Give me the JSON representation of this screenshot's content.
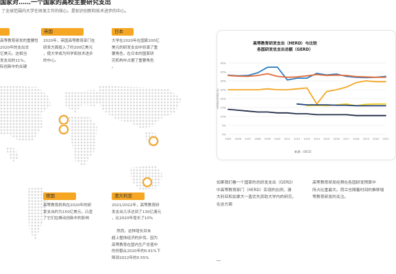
{
  "header": {
    "title": "国家对……一个国家的高校主要研究支出",
    "subtitle": "了全球范围内大学在研发工作的核心。是知识创新和技术进步的中心。"
  },
  "cards": [
    {
      "label": "",
      "text": "高等教育研发的重要性\n2020年的支出总\n亿美元。这相当\n发支出的11%，\n际创新中的关键"
    },
    {
      "label": "英国",
      "text": "2020年，英国高等教育部门在\n研发方面投入了约200亿美元\n，使大学成为科学和技术进步\n的中心。"
    },
    {
      "label": "日本",
      "text": "大学在2020年在国家200亿\n美元的研发支出中扮演了重\n要角色，在日本的国家研\n究机构中占据了重要角色\n。"
    },
    {
      "label": "德国",
      "text": "高等教育机构在2020年的研\n发支出约为150亿美元，凸显\n了它们在推动创新中的影响"
    },
    {
      "label": "澳大利亚",
      "text": "2021/2022年，高等教育研\n发支出几乎达到了130亿澳元\n，比2020年增长了10%\n\n    然而，这种增长并未\n超上整体经济的步伐。因为\n高等教育在国内生产总值中\n的份额从2020年的0.61%下\n降到2022年的0.55%"
    }
  ],
  "chart_data": {
    "type": "line",
    "title": "高等教育研发支出（HERD）与比较\n各国研发总支出总额（GERD）",
    "x": [
      "2005",
      "2006",
      "2007",
      "2008",
      "2009",
      "2010",
      "2011",
      "2012",
      "2013",
      "2014",
      "2015",
      "2016",
      "2017",
      "2018",
      "2019",
      "2020",
      "2021"
    ],
    "ylabel": "HERD/GERD(%)",
    "yticks": [
      "40%",
      "35%",
      "30%",
      "25%",
      "20%",
      "15%",
      "10%",
      "5%",
      "0%"
    ],
    "ylim": [
      0,
      40
    ],
    "series": [
      {
        "color": "#2e7bbf",
        "values": [
          33.2,
          32.8,
          33.0,
          34.5,
          37.6,
          37.7,
          30.5,
          31.5,
          31.5,
          34.2,
          33.3,
          33.8,
          32.5,
          32.0,
          31.8,
          32.0,
          32.5
        ]
      },
      {
        "color": "#e06b3a",
        "values": [
          33.0,
          32.6,
          32.5,
          33.0,
          34.0,
          32.5,
          32.0,
          32.2,
          32.8,
          33.5,
          33.0,
          33.2,
          33.0,
          32.4,
          32.2,
          32.0,
          32.0
        ]
      },
      {
        "color": "#f5a623",
        "values": [
          25.0,
          25.0,
          25.0,
          25.0,
          25.5,
          25.0,
          25.0,
          25.5,
          26.0,
          17.0,
          24.0,
          25.0,
          26.5,
          29.0,
          30.0,
          29.5,
          29.5
        ]
      },
      {
        "color": "#f5d020",
        "values": [
          null,
          null,
          null,
          null,
          null,
          null,
          null,
          null,
          16.0,
          16.2,
          16.0,
          16.5,
          17.0,
          16.0,
          16.8,
          17.0,
          17.0
        ]
      },
      {
        "color": "#1f3f7a",
        "values": [
          null,
          null,
          null,
          null,
          null,
          null,
          null,
          17.0,
          16.5,
          16.5,
          16.5,
          16.3,
          16.3,
          16.0,
          16.0,
          16.0,
          16.0
        ]
      },
      {
        "color": "#222c4a",
        "values": [
          14.0,
          13.5,
          13.0,
          12.5,
          12.5,
          12.0,
          12.0,
          11.5,
          11.5,
          11.0,
          11.0,
          11.0,
          11.0,
          10.5,
          10.5,
          10.5,
          10.5
        ]
      }
    ],
    "source": "来源：OECD"
  },
  "bottom": {
    "col1": "如果我们看一个国家的总研发支出（GERD）\n中高等教育部门（HERD）实现的比例，澳\n大利亚和加拿大一直优先资助大学内的研究，\n在这方面",
    "col2": "高等教育研发经费在各国研发预算中\n所占比重最大。荷兰也随着时间的推移增\n等教育研发的关注。"
  }
}
